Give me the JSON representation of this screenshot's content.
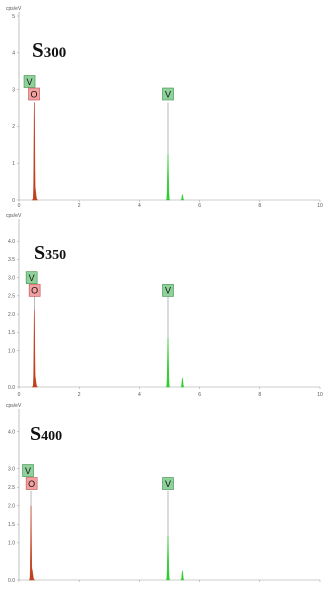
{
  "chart_data": [
    {
      "type": "line",
      "title": "S300",
      "title_letter": "S",
      "title_number": "300",
      "ylabel": "cps/eV",
      "xlim": [
        0,
        10
      ],
      "ylim": [
        0,
        5
      ],
      "x_ticks": [
        "0",
        "2",
        "4",
        "6",
        "8",
        "10"
      ],
      "y_ticks": [
        "0",
        "1",
        "2",
        "3",
        "4",
        "5"
      ],
      "grid": false,
      "series": [
        {
          "color": "#c0401e",
          "peaks": [
            {
              "x": 0.51,
              "y": 2.65,
              "w": 0.05
            },
            {
              "x": 0.53,
              "y": 0.35,
              "w": 0.1
            }
          ]
        },
        {
          "color": "#2ecc2e",
          "peaks": [
            {
              "x": 4.95,
              "y": 1.25,
              "w": 0.06
            },
            {
              "x": 5.43,
              "y": 0.15,
              "w": 0.06
            }
          ]
        }
      ],
      "peak_lines": [
        {
          "x": 0.51,
          "top": 2.65
        },
        {
          "x": 4.95,
          "top": 2.65
        }
      ],
      "element_labels": [
        {
          "text": "V",
          "x": 0.35,
          "y": 3.22,
          "color": "green"
        },
        {
          "text": "O",
          "x": 0.5,
          "y": 2.88,
          "color": "red"
        },
        {
          "text": "V",
          "x": 4.95,
          "y": 2.88,
          "color": "green"
        }
      ]
    },
    {
      "type": "line",
      "title": "S350",
      "title_letter": "S",
      "title_number": "350",
      "ylabel": "cps/eV",
      "xlim": [
        0,
        10
      ],
      "ylim": [
        0,
        4.5
      ],
      "x_ticks": [
        "0",
        "2",
        "4",
        "6",
        "8",
        "10"
      ],
      "y_ticks": [
        "0.0",
        "1.0",
        "1.5",
        "2.0",
        "2.5",
        "3.0",
        "3.5",
        "4.0"
      ],
      "y_tick_values": [
        0,
        1.0,
        1.5,
        2.0,
        2.5,
        3.0,
        3.5,
        4.0
      ],
      "grid": false,
      "series": [
        {
          "color": "#c0401e",
          "peaks": [
            {
              "x": 0.51,
              "y": 2.1,
              "w": 0.05
            },
            {
              "x": 0.53,
              "y": 0.3,
              "w": 0.1
            }
          ]
        },
        {
          "color": "#2ecc2e",
          "peaks": [
            {
              "x": 4.95,
              "y": 1.35,
              "w": 0.06
            },
            {
              "x": 5.43,
              "y": 0.25,
              "w": 0.06
            }
          ]
        }
      ],
      "peak_lines": [
        {
          "x": 0.51,
          "top": 2.6
        },
        {
          "x": 4.95,
          "top": 2.6
        }
      ],
      "element_labels": [
        {
          "text": "V",
          "x": 0.42,
          "y": 3.0,
          "color": "green"
        },
        {
          "text": "O",
          "x": 0.52,
          "y": 2.65,
          "color": "red"
        },
        {
          "text": "V",
          "x": 4.95,
          "y": 2.65,
          "color": "green"
        }
      ]
    },
    {
      "type": "line",
      "title": "S400",
      "title_letter": "S",
      "title_number": "400",
      "ylabel": "cps/eV",
      "xlim": [
        0,
        10
      ],
      "ylim": [
        0,
        4.5
      ],
      "x_ticks": [],
      "y_ticks": [
        "0.0",
        "1.0",
        "1.5",
        "2.0",
        "2.5",
        "3.0",
        "4.0"
      ],
      "y_tick_values": [
        0,
        1.0,
        1.5,
        2.0,
        2.5,
        3.0,
        4.0
      ],
      "grid": false,
      "series": [
        {
          "color": "#c0401e",
          "peaks": [
            {
              "x": 0.4,
              "y": 2.0,
              "w": 0.05
            },
            {
              "x": 0.43,
              "y": 0.3,
              "w": 0.1
            }
          ]
        },
        {
          "color": "#2ecc2e",
          "peaks": [
            {
              "x": 4.95,
              "y": 1.2,
              "w": 0.06
            },
            {
              "x": 5.43,
              "y": 0.25,
              "w": 0.06
            }
          ]
        }
      ],
      "peak_lines": [
        {
          "x": 0.4,
          "top": 2.4
        },
        {
          "x": 4.95,
          "top": 2.4
        }
      ],
      "element_labels": [
        {
          "text": "V",
          "x": 0.3,
          "y": 2.95,
          "color": "green"
        },
        {
          "text": "O",
          "x": 0.42,
          "y": 2.6,
          "color": "red"
        },
        {
          "text": "V",
          "x": 4.95,
          "y": 2.6,
          "color": "green"
        }
      ]
    }
  ],
  "colors": {
    "label_green_fill": "#8fd19a",
    "label_green_stroke": "#3c8f4a",
    "label_red_fill": "#f2a0a0",
    "label_red_stroke": "#c05050",
    "axis": "#999999",
    "peak_line": "#9a9a9a"
  }
}
